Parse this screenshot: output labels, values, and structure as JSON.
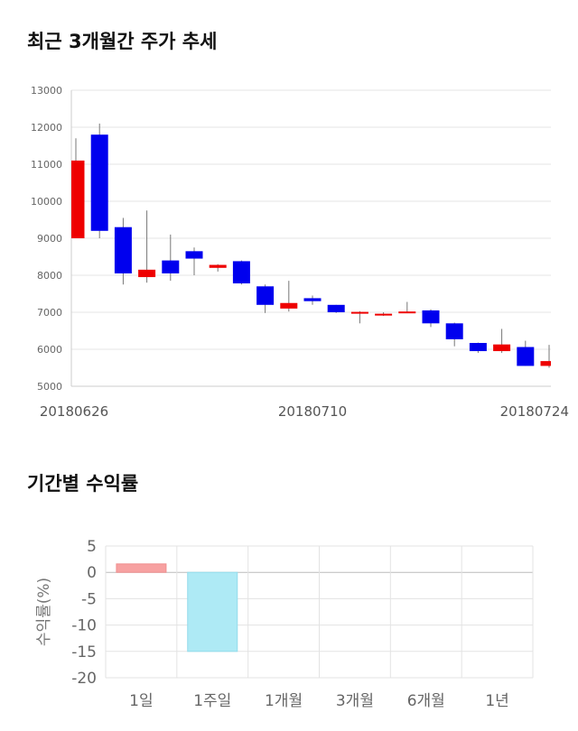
{
  "sections": {
    "candle_title": "최근 3개월간 주가 추세",
    "returns_title": "기간별 수익률"
  },
  "chart_data": [
    {
      "type": "candlestick",
      "title": "최근 3개월간 주가 추세",
      "ylim": [
        5000,
        13000
      ],
      "yticks": [
        5000,
        6000,
        7000,
        8000,
        9000,
        10000,
        11000,
        12000,
        13000
      ],
      "xtick_labels": [
        {
          "index": 0,
          "label": "20180626"
        },
        {
          "index": 10,
          "label": "20180710"
        },
        {
          "index": 20,
          "label": "20180724"
        }
      ],
      "grid": true,
      "up_color": "#ee0000",
      "down_color": "#0000ee",
      "candles": [
        {
          "open": 9000,
          "close": 11100,
          "high": 11700,
          "low": 9000
        },
        {
          "open": 11800,
          "close": 9200,
          "high": 12100,
          "low": 9000
        },
        {
          "open": 9300,
          "close": 8050,
          "high": 9550,
          "low": 7750
        },
        {
          "open": 7950,
          "close": 8150,
          "high": 9750,
          "low": 7800
        },
        {
          "open": 8400,
          "close": 8050,
          "high": 9100,
          "low": 7850
        },
        {
          "open": 8650,
          "close": 8450,
          "high": 8750,
          "low": 8000
        },
        {
          "open": 8200,
          "close": 8280,
          "high": 8300,
          "low": 8100
        },
        {
          "open": 8380,
          "close": 7780,
          "high": 8400,
          "low": 7750
        },
        {
          "open": 7700,
          "close": 7200,
          "high": 7750,
          "low": 6980
        },
        {
          "open": 7100,
          "close": 7250,
          "high": 7850,
          "low": 7020
        },
        {
          "open": 7380,
          "close": 7300,
          "high": 7450,
          "low": 7200
        },
        {
          "open": 7200,
          "close": 7000,
          "high": 7200,
          "low": 6980
        },
        {
          "open": 6970,
          "close": 7010,
          "high": 7030,
          "low": 6700
        },
        {
          "open": 6920,
          "close": 6960,
          "high": 7000,
          "low": 6900
        },
        {
          "open": 7010,
          "close": 7020,
          "high": 7280,
          "low": 6990
        },
        {
          "open": 7050,
          "close": 6700,
          "high": 7080,
          "low": 6600
        },
        {
          "open": 6700,
          "close": 6270,
          "high": 6720,
          "low": 6080
        },
        {
          "open": 6170,
          "close": 5950,
          "high": 6180,
          "low": 5900
        },
        {
          "open": 5950,
          "close": 6130,
          "high": 6550,
          "low": 5900
        },
        {
          "open": 6060,
          "close": 5550,
          "high": 6230,
          "low": 5550
        },
        {
          "open": 5550,
          "close": 5680,
          "high": 6120,
          "low": 5500
        }
      ]
    },
    {
      "type": "bar",
      "title": "기간별 수익률",
      "ylabel": "수익률(%)",
      "ylim": [
        -20,
        5
      ],
      "yticks": [
        5,
        0,
        -5,
        -10,
        -15,
        -20
      ],
      "categories": [
        "1일",
        "1주일",
        "1개월",
        "3개월",
        "6개월",
        "1년"
      ],
      "values": [
        1.6,
        -15,
        0,
        0,
        0,
        0
      ],
      "positive_color": "#f7a1a1",
      "negative_color": "#aeeaf5",
      "grid": true
    }
  ]
}
